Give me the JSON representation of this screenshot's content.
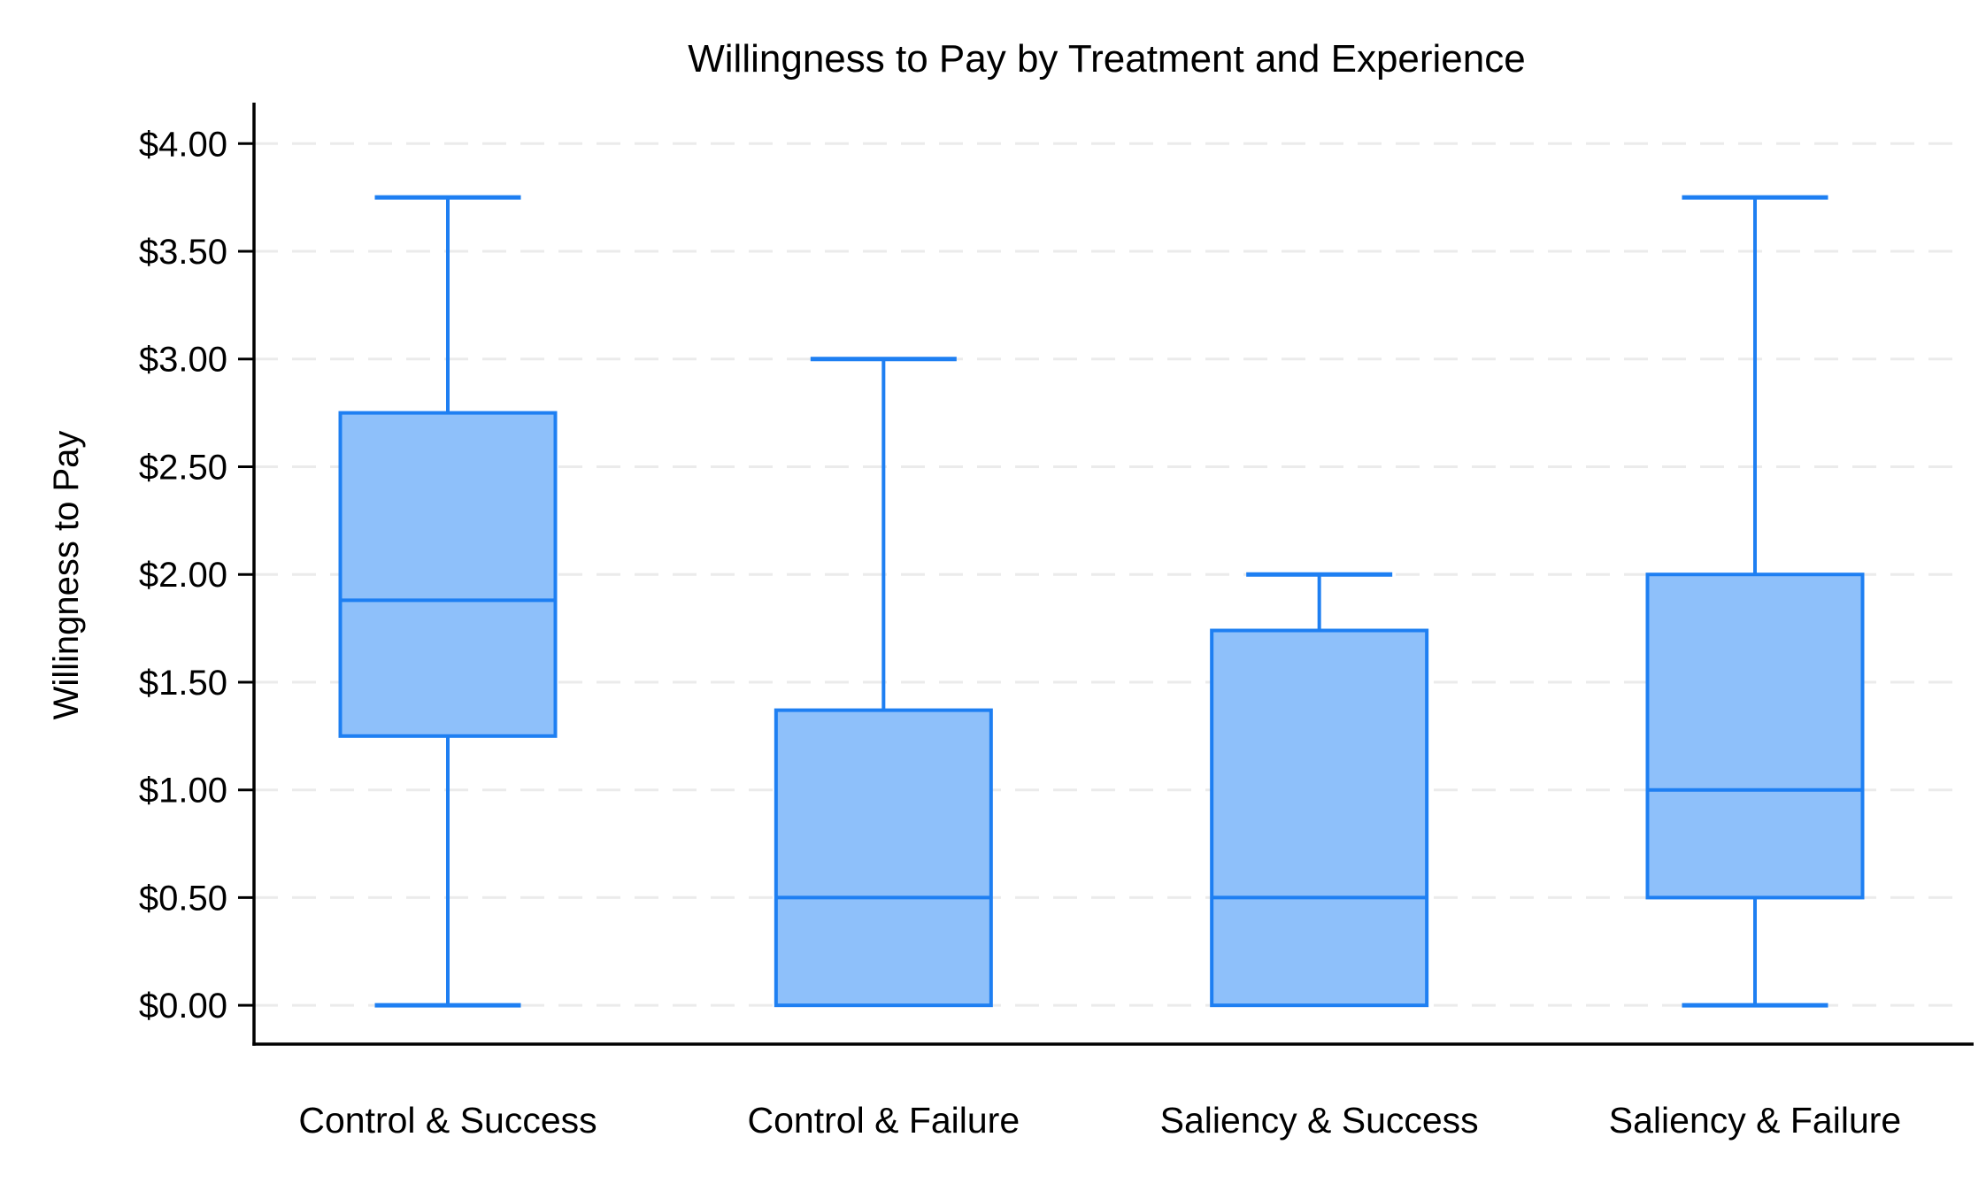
{
  "chart_data": {
    "type": "box",
    "title": "Willingness to Pay by Treatment and Experience",
    "ylabel": "Willingness to Pay",
    "xlabel": "",
    "categories": [
      "Control & Success",
      "Control & Failure",
      "Saliency & Success",
      "Saliency & Failure"
    ],
    "series": [
      {
        "name": "Control & Success",
        "min": 0.0,
        "q1": 1.25,
        "median": 1.88,
        "q3": 2.75,
        "max": 3.75
      },
      {
        "name": "Control & Failure",
        "min": 0.0,
        "q1": 0.0,
        "median": 0.5,
        "q3": 1.37,
        "max": 3.0
      },
      {
        "name": "Saliency & Success",
        "min": 0.0,
        "q1": 0.0,
        "median": 0.5,
        "q3": 1.74,
        "max": 2.0
      },
      {
        "name": "Saliency & Failure",
        "min": 0.0,
        "q1": 0.5,
        "median": 1.0,
        "q3": 2.0,
        "max": 3.75
      }
    ],
    "yticks": {
      "values": [
        0,
        0.5,
        1,
        1.5,
        2,
        2.5,
        3,
        3.5,
        4
      ],
      "labels": [
        "$0.00",
        "$0.50",
        "$1.00",
        "$1.50",
        "$2.00",
        "$2.50",
        "$3.00",
        "$3.50",
        "$4.00"
      ]
    },
    "ylim": [
      -0.18,
      4.19
    ],
    "grid": {
      "visible": true,
      "style": "dashed",
      "color": "#ebebeb"
    },
    "legend_position": "none",
    "colors": {
      "box_fill": "#8ec0fa",
      "box_line": "#1e7ff2",
      "axis": "#000000",
      "text": "#000000",
      "background": "#ffffff"
    }
  }
}
